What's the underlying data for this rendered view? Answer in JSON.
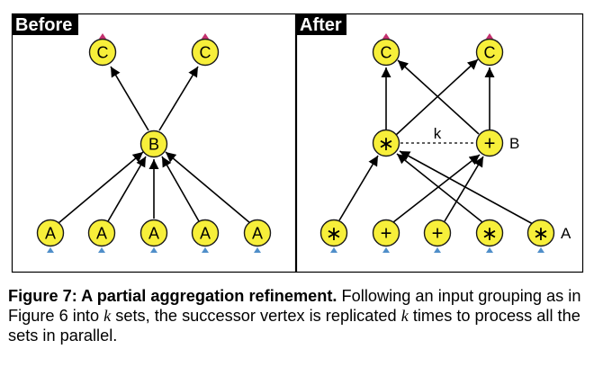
{
  "panels": {
    "before": {
      "label": "Before"
    },
    "after": {
      "label": "After"
    }
  },
  "node_labels": {
    "a": "A",
    "b": "B",
    "c": "C"
  },
  "operators": {
    "times": "∗",
    "plus": "+"
  },
  "annotations": {
    "k_edge": "k",
    "side_b": "B",
    "side_a": "A"
  },
  "colors": {
    "node_fill": "#f7ef3a",
    "node_stroke": "#1a1a1a",
    "input_arrow": "#4f8ec9",
    "output_arrow": "#c2306e",
    "panel_label_bg": "#000000"
  },
  "caption": {
    "title": "Figure 7: A partial aggregation refinement.",
    "part1": " Following an input grouping as in Figure 6 into ",
    "k1": "k",
    "part2": " sets, the successor vertex is replicated ",
    "k2": "k",
    "part3": " times to process all the sets in parallel."
  }
}
